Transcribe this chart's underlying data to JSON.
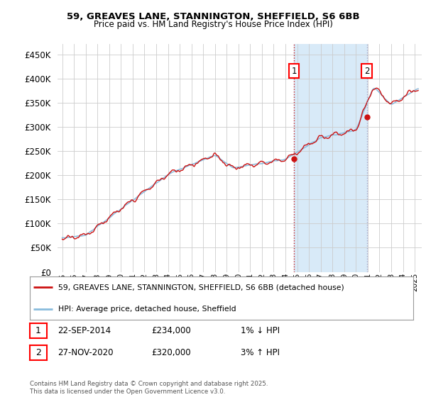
{
  "title1": "59, GREAVES LANE, STANNINGTON, SHEFFIELD, S6 6BB",
  "title2": "Price paid vs. HM Land Registry's House Price Index (HPI)",
  "yticks": [
    0,
    50000,
    100000,
    150000,
    200000,
    250000,
    300000,
    350000,
    400000,
    450000
  ],
  "ylim": [
    0,
    472000
  ],
  "xlim_start": 1994.6,
  "xlim_end": 2025.6,
  "sale1_x": 2014.73,
  "sale1_y": 234000,
  "sale2_x": 2020.92,
  "sale2_y": 320000,
  "shade_color": "#d8eaf8",
  "vline1_color": "#cc2222",
  "vline2_color": "#aaaacc",
  "hpi_color": "#88bbdd",
  "price_color": "#cc1111",
  "grid_color": "#cccccc",
  "legend_line1": "59, GREAVES LANE, STANNINGTON, SHEFFIELD, S6 6BB (detached house)",
  "legend_line2": "HPI: Average price, detached house, Sheffield",
  "table_row1_num": "1",
  "table_row1_date": "22-SEP-2014",
  "table_row1_price": "£234,000",
  "table_row1_hpi": "1% ↓ HPI",
  "table_row2_num": "2",
  "table_row2_date": "27-NOV-2020",
  "table_row2_price": "£320,000",
  "table_row2_hpi": "3% ↑ HPI",
  "footer": "Contains HM Land Registry data © Crown copyright and database right 2025.\nThis data is licensed under the Open Government Licence v3.0."
}
